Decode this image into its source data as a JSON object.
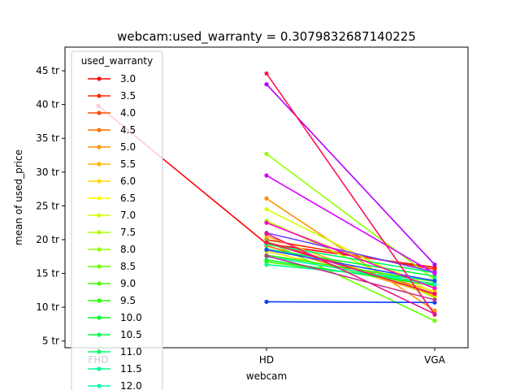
{
  "chart_data": {
    "type": "line",
    "title": "webcam:used_warranty = 0.3079832687140225",
    "xlabel": "webcam",
    "ylabel": "mean of used_price",
    "categories": [
      "FHD",
      "HD",
      "VGA"
    ],
    "ylim": [
      4000000,
      48500000
    ],
    "yticks": [
      {
        "value": 5000000,
        "label": "5 tr"
      },
      {
        "value": 10000000,
        "label": "10 tr"
      },
      {
        "value": 15000000,
        "label": "15 tr"
      },
      {
        "value": 20000000,
        "label": "20 tr"
      },
      {
        "value": 25000000,
        "label": "25 tr"
      },
      {
        "value": 30000000,
        "label": "30 tr"
      },
      {
        "value": 35000000,
        "label": "35 tr"
      },
      {
        "value": 40000000,
        "label": "40 tr"
      },
      {
        "value": 45000000,
        "label": "45 tr"
      }
    ],
    "grid": false,
    "legend": {
      "title": "used_warranty",
      "placement": "upper-left"
    },
    "series": [
      {
        "name": "3.0",
        "color": "#ff0000",
        "values": [
          39800000,
          19400000,
          15900000
        ]
      },
      {
        "name": "3.5",
        "color": "#ff2a00",
        "values": [
          null,
          20000000,
          15600000
        ]
      },
      {
        "name": "4.0",
        "color": "#ff4d00",
        "values": [
          null,
          19700000,
          12300000
        ]
      },
      {
        "name": "4.5",
        "color": "#ff7000",
        "values": [
          null,
          19100000,
          11900000
        ]
      },
      {
        "name": "5.0",
        "color": "#ff9400",
        "values": [
          null,
          26100000,
          9500000
        ]
      },
      {
        "name": "5.5",
        "color": "#ffb600",
        "values": [
          null,
          20500000,
          11600000
        ]
      },
      {
        "name": "6.0",
        "color": "#ffdb00",
        "values": [
          null,
          18300000,
          12400000
        ]
      },
      {
        "name": "6.5",
        "color": "#f9ff00",
        "values": [
          null,
          22500000,
          13000000
        ]
      },
      {
        "name": "7.0",
        "color": "#d4ff00",
        "values": [
          null,
          24500000,
          12100000
        ]
      },
      {
        "name": "7.5",
        "color": "#b1ff00",
        "values": [
          null,
          22800000,
          11400000
        ]
      },
      {
        "name": "8.0",
        "color": "#8eff00",
        "values": [
          null,
          32700000,
          14100000
        ]
      },
      {
        "name": "8.5",
        "color": "#6aff00",
        "values": [
          null,
          19800000,
          8000000
        ]
      },
      {
        "name": "9.0",
        "color": "#46ff00",
        "values": [
          null,
          16700000,
          13500000
        ]
      },
      {
        "name": "9.5",
        "color": "#22ff00",
        "values": [
          null,
          17700000,
          13800000
        ]
      },
      {
        "name": "10.0",
        "color": "#00ff22",
        "values": [
          null,
          17000000,
          13200000
        ]
      },
      {
        "name": "10.5",
        "color": "#00ff47",
        "values": [
          null,
          18600000,
          14600000
        ]
      },
      {
        "name": "11.0",
        "color": "#00ff6a",
        "values": [
          null,
          19300000,
          15100000
        ]
      },
      {
        "name": "11.5",
        "color": "#00ff8e",
        "values": [
          null,
          16300000,
          14000000
        ]
      },
      {
        "name": "12.0",
        "color": "#00ffb1",
        "values": [
          null,
          17500000,
          13400000
        ]
      },
      {
        "name": "",
        "color": "#0a3cff",
        "values": [
          null,
          10800000,
          10700000
        ]
      },
      {
        "name": "",
        "color": "#1e4bff",
        "values": [
          null,
          18500000,
          13900000
        ]
      },
      {
        "name": "",
        "color": "#7a3cff",
        "values": [
          null,
          21000000,
          15200000
        ]
      },
      {
        "name": "",
        "color": "#b400ff",
        "values": [
          null,
          43000000,
          16300000
        ]
      },
      {
        "name": "",
        "color": "#dc00ff",
        "values": [
          null,
          29500000,
          15000000
        ]
      },
      {
        "name": "",
        "color": "#ff00c8",
        "values": [
          null,
          22500000,
          12800000
        ]
      },
      {
        "name": "",
        "color": "#ff0a64",
        "values": [
          null,
          19600000,
          12000000
        ]
      },
      {
        "name": "",
        "color": "#ff1450",
        "values": [
          null,
          44600000,
          8900000
        ]
      },
      {
        "name": "",
        "color": "#e6148c",
        "values": [
          null,
          20900000,
          9000000
        ]
      },
      {
        "name": "",
        "color": "#c83296",
        "values": [
          null,
          17600000,
          11100000
        ]
      }
    ]
  }
}
